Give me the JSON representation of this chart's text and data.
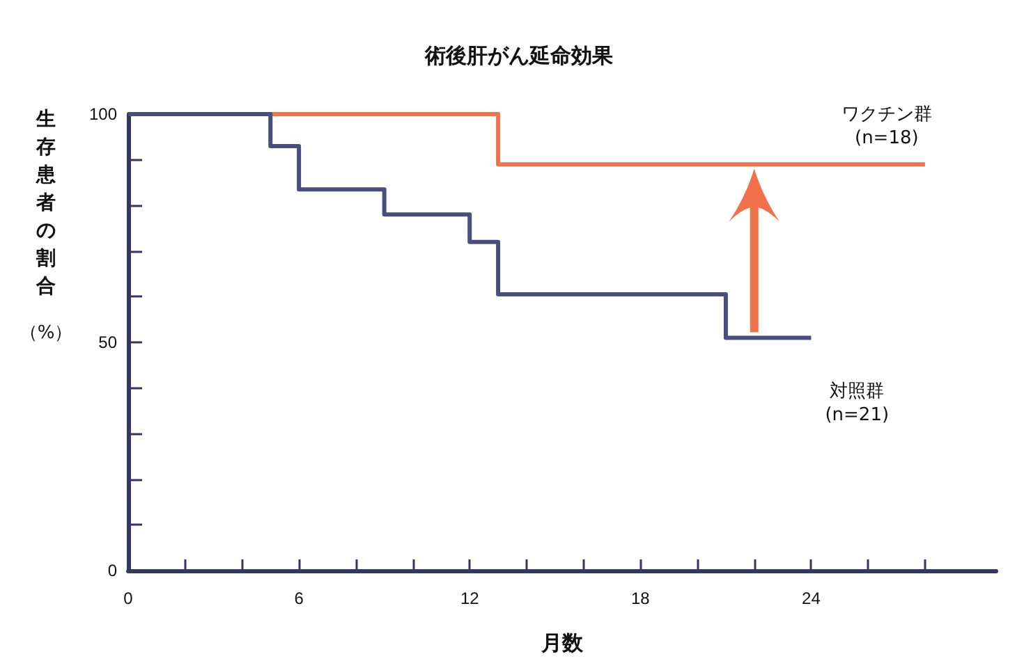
{
  "chart_data": {
    "type": "step",
    "title": "術後肝がん延命効果",
    "xlabel": "月数",
    "ylabel": "生存患者の割合",
    "annotations": [
      "（%）"
    ],
    "series": [
      {
        "name": "ワクチン群\n(n=18)",
        "color": "#f0714a",
        "x": [
          5,
          13,
          28
        ],
        "values": [
          100,
          89,
          89
        ]
      },
      {
        "name": "対照群\n(n=21)",
        "color": "#4a4e7c",
        "x": [
          0,
          5,
          6,
          9,
          12,
          13,
          21,
          24
        ],
        "values": [
          100,
          93,
          83.5,
          78,
          72,
          60.5,
          51,
          51
        ]
      }
    ],
    "xlim": [
      0,
      30.5
    ],
    "xticks": [
      0,
      {
        "value": 2,
        "label": null
      },
      {
        "value": 4,
        "label": null
      },
      6,
      {
        "value": 8,
        "label": null
      },
      {
        "value": 10,
        "label": null
      },
      12,
      {
        "value": 14,
        "label": null
      },
      {
        "value": 16,
        "label": null
      },
      18,
      {
        "value": 20,
        "label": null
      },
      {
        "value": 22,
        "label": null
      },
      24,
      {
        "value": 26,
        "label": null
      },
      {
        "value": 28,
        "label": null
      }
    ],
    "ylim": [
      0,
      100
    ],
    "yticks": [
      0,
      {
        "value": 10,
        "label": null
      },
      {
        "value": 20,
        "label": null
      },
      {
        "value": 30,
        "label": null
      },
      {
        "value": 40,
        "label": null
      },
      50,
      {
        "value": 60,
        "label": null
      },
      {
        "value": 70,
        "label": null
      },
      {
        "value": 80,
        "label": null
      },
      {
        "value": 90,
        "label": null
      },
      100
    ],
    "grid": false,
    "legend": false,
    "marker": "none",
    "line_style": "solid"
  }
}
